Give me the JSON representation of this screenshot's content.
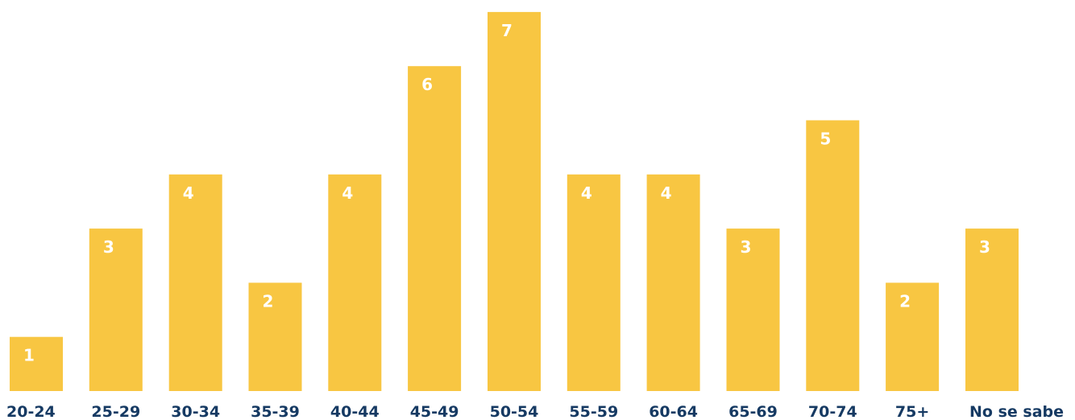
{
  "chart_data": {
    "type": "bar",
    "title": "",
    "xlabel": "",
    "ylabel": "",
    "categories": [
      "20-24",
      "25-29",
      "30-34",
      "35-39",
      "40-44",
      "45-49",
      "50-54",
      "55-59",
      "60-64",
      "65-69",
      "70-74",
      "75+",
      "No se sabe"
    ],
    "values": [
      1,
      3,
      4,
      2,
      4,
      6,
      7,
      4,
      4,
      3,
      5,
      2,
      3
    ],
    "ylim": [
      0,
      7
    ],
    "grid": false,
    "data_labels": true,
    "colors": {
      "bar": "#f8c642",
      "value_label": "#ffffff",
      "category_label": "#163a63"
    }
  }
}
